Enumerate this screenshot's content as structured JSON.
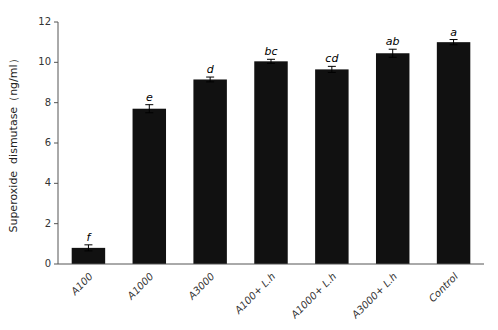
{
  "chart_data": {
    "type": "bar",
    "y_label": "Superoxide  dismutase（ng/ml）",
    "categories": [
      "A100",
      "A1000",
      "A3000",
      "A100+ L.h",
      "A1000+ L.h",
      "A3000+ L.h",
      "Control"
    ],
    "values": [
      0.8,
      7.7,
      9.15,
      10.05,
      9.65,
      10.45,
      11.0
    ],
    "errors": [
      0.15,
      0.2,
      0.12,
      0.1,
      0.15,
      0.2,
      0.13
    ],
    "annotations": [
      "f",
      "e",
      "d",
      "bc",
      "cd",
      "ab",
      "a"
    ],
    "color": "#111111",
    "ylim": [
      0,
      12
    ],
    "yticks": [
      0,
      2,
      4,
      6,
      8,
      10,
      12
    ],
    "grid": false
  }
}
